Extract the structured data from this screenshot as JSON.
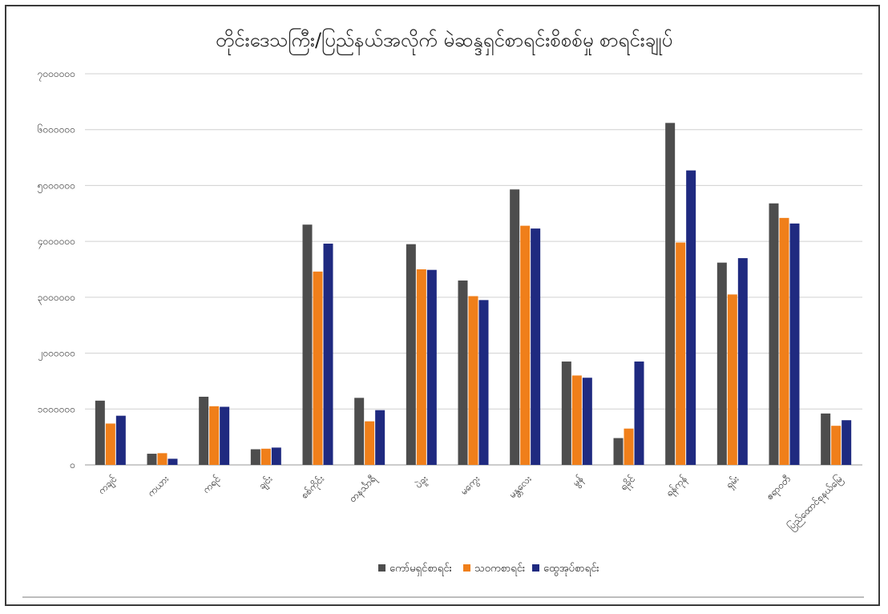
{
  "chart_data": {
    "type": "bar",
    "title": "တိုင်းဒေသကြီး/ပြည်နယ်အလိုက် မဲဆန္ဒရှင်စာရင်းစိစစ်မှု စာရင်းချုပ်",
    "xlabel": "",
    "ylabel": "",
    "ylim": [
      0,
      7000000
    ],
    "yticks": [
      0,
      1000000,
      2000000,
      3000000,
      4000000,
      5000000,
      6000000,
      7000000
    ],
    "ytick_labels": [
      "၀",
      "၁၀၀၀၀၀၀",
      "၂၀၀၀၀၀၀",
      "၃၀၀၀၀၀၀",
      "၄၀၀၀၀၀၀",
      "၅၀၀၀၀၀၀",
      "၆၀၀၀၀၀၀",
      "၇၀၀၀၀၀၀"
    ],
    "grid": true,
    "legend_position": "bottom",
    "categories": [
      "ကချင်",
      "ကယား",
      "ကရင်",
      "ချင်း",
      "စစ်ကိုင်း",
      "တနင်္သာရီ",
      "ပဲခူး",
      "မကွေး",
      "မန္တလေး",
      "မွန်",
      "ရခိုင်",
      "ရန်ကုန်",
      "ရှမ်း",
      "ဧရာဝတီ",
      "ပြည်ထောင်စုနယ်မြေ"
    ],
    "series": [
      {
        "name": "ကော်မရှင်စာရင်း",
        "color": "#4d4d4d",
        "values": [
          1150000,
          200000,
          1220000,
          280000,
          4300000,
          1200000,
          3950000,
          3300000,
          4930000,
          1850000,
          480000,
          6120000,
          3620000,
          4680000,
          920000
        ]
      },
      {
        "name": "သဝကစာရင်း",
        "color": "#f07f1a",
        "values": [
          740000,
          210000,
          1050000,
          290000,
          3460000,
          780000,
          3500000,
          3020000,
          4280000,
          1600000,
          650000,
          3980000,
          3050000,
          4420000,
          700000
        ]
      },
      {
        "name": "ထွေအုပ်စာရင်း",
        "color": "#1f2a80",
        "values": [
          880000,
          110000,
          1040000,
          310000,
          3960000,
          980000,
          3490000,
          2950000,
          4230000,
          1560000,
          1850000,
          5270000,
          3700000,
          4320000,
          800000
        ]
      }
    ]
  }
}
